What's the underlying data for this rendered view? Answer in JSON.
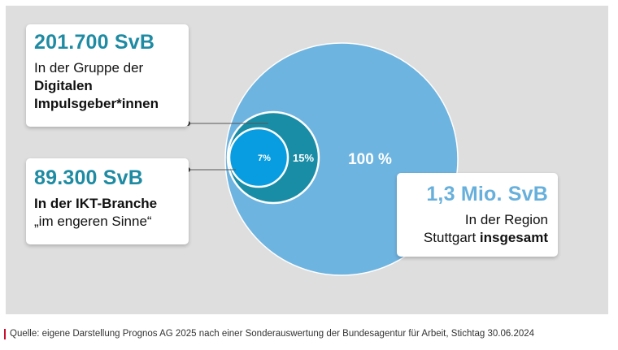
{
  "chart_data": {
    "type": "nested-circles",
    "title": "",
    "circles": [
      {
        "name": "Region Stuttgart insgesamt",
        "value": 1300000,
        "pct_label": "100 %",
        "color": "#6eb4e0"
      },
      {
        "name": "Digitale Impulsgeber*innen",
        "value": 201700,
        "pct_label": "15%",
        "color": "#1a8da6"
      },
      {
        "name": "IKT-Branche im engeren Sinne",
        "value": 89300,
        "pct_label": "7%",
        "color": "#079de0"
      }
    ]
  },
  "callouts": {
    "digital": {
      "value": "201.700 SvB",
      "line1": "In der Gruppe der",
      "line2": "Digitalen",
      "line3": "Impulsgeber*innen"
    },
    "ikt": {
      "value": "89.300 SvB",
      "line1": "In der IKT-Branche",
      "line2": "„im engeren Sinne“"
    },
    "region": {
      "value": "1,3 Mio. SvB",
      "line1": "In der Region",
      "line2a": "Stuttgart ",
      "line2b": "insgesamt"
    }
  },
  "source": "Quelle: eigene Darstellung Prognos AG 2025 nach einer Sonderauswertung der Bundesagentur für Arbeit, Stichtag 30.06.2024",
  "colors": {
    "panel": "#dedede",
    "accent_dark": "#1f8ba3",
    "accent_light": "#68b0dc",
    "source_mark": "#c8102e"
  }
}
